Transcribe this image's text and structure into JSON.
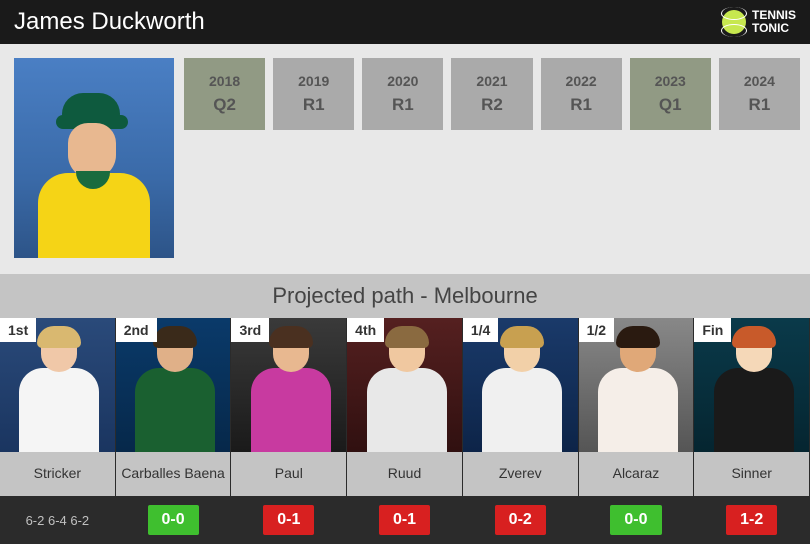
{
  "header": {
    "player_name": "James Duckworth",
    "logo_line1": "TENNIS",
    "logo_line2": "TONIC"
  },
  "years": [
    {
      "year": "2018",
      "result": "Q2",
      "darker": true
    },
    {
      "year": "2019",
      "result": "R1",
      "darker": false
    },
    {
      "year": "2020",
      "result": "R1",
      "darker": false
    },
    {
      "year": "2021",
      "result": "R2",
      "darker": false
    },
    {
      "year": "2022",
      "result": "R1",
      "darker": false
    },
    {
      "year": "2023",
      "result": "Q1",
      "darker": true
    },
    {
      "year": "2024",
      "result": "R1",
      "darker": false
    }
  ],
  "path_title": "Projected path - Melbourne",
  "opponents": [
    {
      "stage": "1st",
      "name": "Stricker",
      "score_type": "text",
      "score": "6-2 6-4 6-2",
      "bg": "bg-1",
      "skin": "#f0c8a8",
      "hair": "#d9b870",
      "shirt": "#f5f5f5"
    },
    {
      "stage": "2nd",
      "name": "Carballes Baena",
      "score_type": "h2h",
      "h2h": "0-0",
      "h2h_color": "green",
      "bg": "bg-2",
      "skin": "#e0b088",
      "hair": "#3a2a1a",
      "shirt": "#1a6030"
    },
    {
      "stage": "3rd",
      "name": "Paul",
      "score_type": "h2h",
      "h2h": "0-1",
      "h2h_color": "red",
      "bg": "bg-3",
      "skin": "#e8b890",
      "hair": "#4a3020",
      "shirt": "#c83aa0"
    },
    {
      "stage": "4th",
      "name": "Ruud",
      "score_type": "h2h",
      "h2h": "0-1",
      "h2h_color": "red",
      "bg": "bg-4",
      "skin": "#f0c8a0",
      "hair": "#8a6a40",
      "shirt": "#e8e8e8"
    },
    {
      "stage": "1/4",
      "name": "Zverev",
      "score_type": "h2h",
      "h2h": "0-2",
      "h2h_color": "red",
      "bg": "bg-5",
      "skin": "#f2d0a8",
      "hair": "#c8a050",
      "shirt": "#f0f0f0"
    },
    {
      "stage": "1/2",
      "name": "Alcaraz",
      "score_type": "h2h",
      "h2h": "0-0",
      "h2h_color": "green",
      "bg": "bg-6",
      "skin": "#e0a878",
      "hair": "#2a1a10",
      "shirt": "#f5eee8"
    },
    {
      "stage": "Fin",
      "name": "Sinner",
      "score_type": "h2h",
      "h2h": "1-2",
      "h2h_color": "red",
      "bg": "bg-7",
      "skin": "#f5d8b8",
      "hair": "#c85a2a",
      "shirt": "#1a1a1a"
    }
  ],
  "colors": {
    "header_bg": "#1a1a1a",
    "page_bg": "#2b2b2b",
    "section_bg": "#e8e8e8",
    "cell_bg": "#aaaaaa",
    "cell_bg_dark": "#919a84",
    "path_header_bg": "#c4c4c4",
    "h2h_green": "#3fbf2f",
    "h2h_red": "#d82020"
  }
}
